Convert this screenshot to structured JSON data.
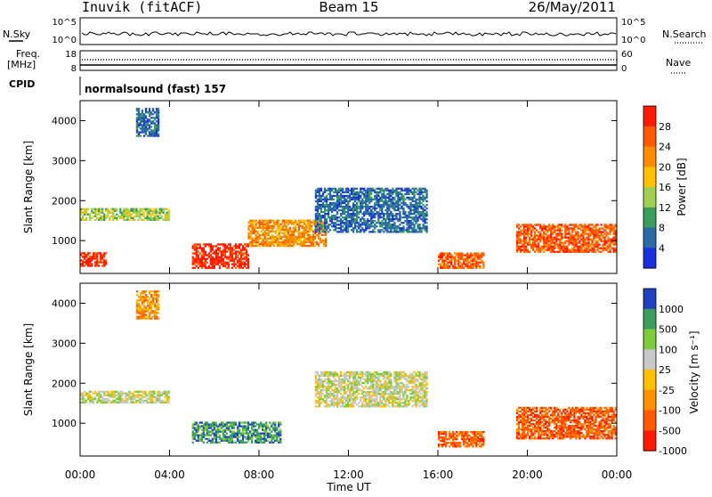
{
  "header": {
    "station": "Inuvik (fitACF)",
    "beam": "Beam 15",
    "date": "26/May/2011"
  },
  "top_panels": {
    "nsky_label": "N.Sky",
    "nsky_ticks": [
      "10^5",
      "10^0"
    ],
    "nsearch_label": "N.Search",
    "nsearch_ticks": [
      "10^5",
      "10^0"
    ],
    "freq_label": "Freq.",
    "freq_unit": "[MHz]",
    "freq_ticks": [
      "18",
      "8"
    ],
    "nave_label": "Nave",
    "nave_ticks": [
      "60",
      "0"
    ],
    "cpid_label": "CPID",
    "cpid_value": "normalsound (fast) 157"
  },
  "chart_data": [
    {
      "type": "heatmap",
      "name": "power",
      "xlabel": "",
      "ylabel": "Slant Range [km]",
      "x_ticks": [
        "00:00",
        "04:00",
        "08:00",
        "12:00",
        "16:00",
        "20:00",
        "00:00"
      ],
      "x_hours": [
        0,
        4,
        8,
        12,
        16,
        20,
        24
      ],
      "xlim_hours": [
        0,
        24
      ],
      "y_ticks": [
        1000,
        2000,
        3000,
        4000
      ],
      "ylim": [
        180,
        4500
      ],
      "colorbar": {
        "label": "Power [dB]",
        "ticks": [
          "28",
          "24",
          "20",
          "16",
          "12",
          "8",
          "4"
        ],
        "colors": [
          "#ff1a00",
          "#ff5a00",
          "#ff8c00",
          "#ffc000",
          "#a0d050",
          "#3c9e5e",
          "#2a6aa6",
          "#1a2fe0"
        ]
      },
      "echo_regions": [
        {
          "t0": 0.0,
          "t1": 1.2,
          "r0": 350,
          "r1": 700,
          "level": 0
        },
        {
          "t0": 0.0,
          "t1": 4.0,
          "r0": 1500,
          "r1": 1800,
          "level": 4
        },
        {
          "t0": 2.5,
          "t1": 3.5,
          "r0": 3600,
          "r1": 4300,
          "level": 6
        },
        {
          "t0": 5.0,
          "t1": 7.5,
          "r0": 300,
          "r1": 900,
          "level": 0
        },
        {
          "t0": 7.5,
          "t1": 11.0,
          "r0": 850,
          "r1": 1500,
          "level": 2
        },
        {
          "t0": 10.5,
          "t1": 15.5,
          "r0": 1200,
          "r1": 2300,
          "level": 6
        },
        {
          "t0": 16.0,
          "t1": 18.0,
          "r0": 300,
          "r1": 700,
          "level": 1
        },
        {
          "t0": 19.5,
          "t1": 24.0,
          "r0": 700,
          "r1": 1400,
          "level": 1
        }
      ]
    },
    {
      "type": "heatmap",
      "name": "velocity",
      "xlabel": "Time UT",
      "ylabel": "Slant Range [km]",
      "x_ticks": [
        "00:00",
        "04:00",
        "08:00",
        "12:00",
        "16:00",
        "20:00",
        "00:00"
      ],
      "x_hours": [
        0,
        4,
        8,
        12,
        16,
        20,
        24
      ],
      "xlim_hours": [
        0,
        24
      ],
      "y_ticks": [
        1000,
        2000,
        3000,
        4000
      ],
      "ylim": [
        180,
        4500
      ],
      "colorbar": {
        "label": "Velocity [m s⁻¹]",
        "ticks": [
          "1000",
          "500",
          "100",
          "25",
          "-25",
          "-100",
          "-500",
          "-1000"
        ],
        "colors": [
          "#2040c0",
          "#3c9e5e",
          "#7ccc3c",
          "#c8c8c8",
          "#ffc000",
          "#ff9000",
          "#ff5a00",
          "#ff1a00"
        ]
      },
      "echo_regions": [
        {
          "t0": 0.0,
          "t1": 4.0,
          "r0": 1500,
          "r1": 1800,
          "level": 3
        },
        {
          "t0": 2.5,
          "t1": 3.5,
          "r0": 3600,
          "r1": 4300,
          "level": 5
        },
        {
          "t0": 5.0,
          "t1": 9.0,
          "r0": 500,
          "r1": 1000,
          "level": 1
        },
        {
          "t0": 10.5,
          "t1": 15.5,
          "r0": 1400,
          "r1": 2300,
          "level": 3
        },
        {
          "t0": 16.0,
          "t1": 18.0,
          "r0": 400,
          "r1": 800,
          "level": 6
        },
        {
          "t0": 19.5,
          "t1": 24.0,
          "r0": 600,
          "r1": 1400,
          "level": 6
        }
      ]
    }
  ]
}
